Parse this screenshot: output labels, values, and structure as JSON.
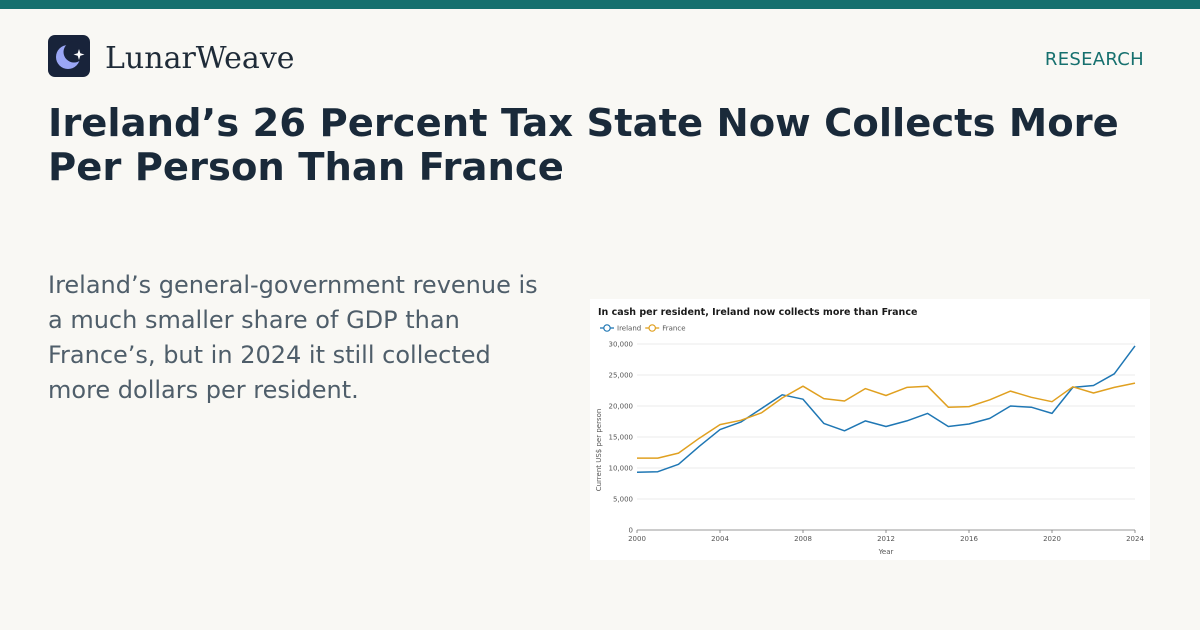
{
  "brand": {
    "name": "LunarWeave"
  },
  "nav": {
    "section": "RESEARCH"
  },
  "article": {
    "headline": "Ireland’s 26 Percent Tax State Now Collects More Per Person Than France",
    "summary": "Ireland’s general-government revenue is a much smaller share of GDP than France’s, but in 2024 it still collected more dollars per resident."
  },
  "colors": {
    "accent": "#16706e",
    "ireland": "#1f77b4",
    "france": "#e0a020"
  },
  "chart_data": {
    "type": "line",
    "title": "In cash per resident, Ireland now collects more than France",
    "xlabel": "Year",
    "ylabel": "Current US$ per person",
    "xlim": [
      2000,
      2024
    ],
    "ylim": [
      0,
      30000
    ],
    "x_ticks": [
      2000,
      2004,
      2008,
      2012,
      2016,
      2020,
      2024
    ],
    "y_ticks": [
      0,
      5000,
      10000,
      15000,
      20000,
      25000,
      30000
    ],
    "y_tick_labels": [
      "0",
      "5,000",
      "10,000",
      "15,000",
      "20,000",
      "25,000",
      "30,000"
    ],
    "grid": "horizontal",
    "legend_position": "top-left",
    "x": [
      2000,
      2001,
      2002,
      2003,
      2004,
      2005,
      2006,
      2007,
      2008,
      2009,
      2010,
      2011,
      2012,
      2013,
      2014,
      2015,
      2016,
      2017,
      2018,
      2019,
      2020,
      2021,
      2022,
      2023,
      2024
    ],
    "series": [
      {
        "name": "Ireland",
        "color": "#1f77b4",
        "values": [
          9300,
          9400,
          10600,
          13500,
          16200,
          17400,
          19600,
          21800,
          21100,
          17200,
          16000,
          17600,
          16700,
          17600,
          18800,
          16700,
          17100,
          18000,
          20000,
          19800,
          18800,
          23000,
          23300,
          25200,
          29700
        ]
      },
      {
        "name": "France",
        "color": "#e0a020",
        "values": [
          11600,
          11600,
          12400,
          14800,
          17000,
          17700,
          18900,
          21300,
          23200,
          21200,
          20800,
          22800,
          21700,
          23000,
          23200,
          19800,
          19900,
          21000,
          22400,
          21400,
          20700,
          23100,
          22100,
          23000,
          23700
        ]
      }
    ]
  }
}
